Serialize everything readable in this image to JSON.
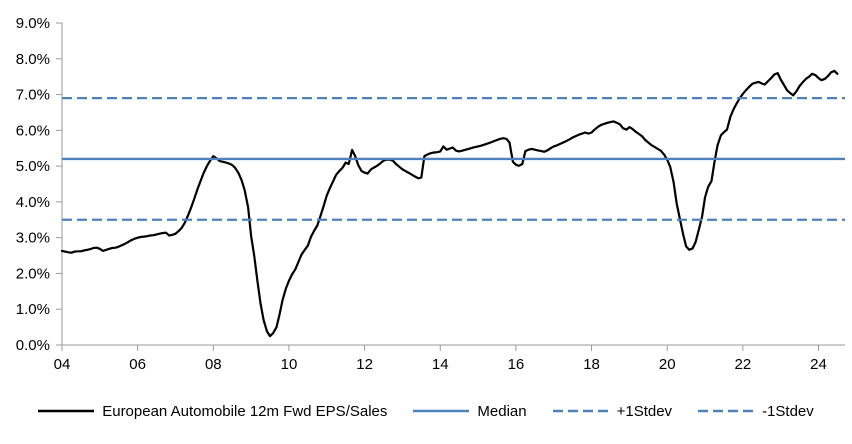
{
  "chart_data": {
    "type": "line",
    "title": "",
    "xlabel": "",
    "ylabel": "",
    "grid": false,
    "legend_position": "bottom",
    "axis_color": "#9a9a9a",
    "x_axis": {
      "range": [
        2004,
        2024.7
      ],
      "tick_values": [
        2004,
        2006,
        2008,
        2010,
        2012,
        2014,
        2016,
        2018,
        2020,
        2022,
        2024
      ],
      "tick_labels": [
        "04",
        "06",
        "08",
        "10",
        "12",
        "14",
        "16",
        "18",
        "20",
        "22",
        "24"
      ]
    },
    "y_axis": {
      "range": [
        0,
        9
      ],
      "tick_values": [
        0,
        1,
        2,
        3,
        4,
        5,
        6,
        7,
        8,
        9
      ],
      "tick_labels": [
        "0.0%",
        "1.0%",
        "2.0%",
        "3.0%",
        "4.0%",
        "5.0%",
        "6.0%",
        "7.0%",
        "8.0%",
        "9.0%"
      ]
    },
    "series": [
      {
        "name": "European Automobile 12m Fwd EPS/Sales",
        "color": "#000000",
        "style": "solid",
        "points": [
          [
            2004.0,
            2.63
          ],
          [
            2004.08,
            2.61
          ],
          [
            2004.17,
            2.59
          ],
          [
            2004.25,
            2.58
          ],
          [
            2004.33,
            2.61
          ],
          [
            2004.42,
            2.62
          ],
          [
            2004.5,
            2.62
          ],
          [
            2004.58,
            2.64
          ],
          [
            2004.67,
            2.66
          ],
          [
            2004.75,
            2.68
          ],
          [
            2004.83,
            2.71
          ],
          [
            2004.92,
            2.72
          ],
          [
            2005.0,
            2.69
          ],
          [
            2005.08,
            2.63
          ],
          [
            2005.17,
            2.66
          ],
          [
            2005.25,
            2.69
          ],
          [
            2005.33,
            2.71
          ],
          [
            2005.42,
            2.72
          ],
          [
            2005.5,
            2.75
          ],
          [
            2005.58,
            2.79
          ],
          [
            2005.67,
            2.83
          ],
          [
            2005.75,
            2.88
          ],
          [
            2005.83,
            2.93
          ],
          [
            2005.92,
            2.97
          ],
          [
            2006.0,
            3.0
          ],
          [
            2006.08,
            3.02
          ],
          [
            2006.17,
            3.03
          ],
          [
            2006.25,
            3.04
          ],
          [
            2006.33,
            3.06
          ],
          [
            2006.42,
            3.07
          ],
          [
            2006.5,
            3.09
          ],
          [
            2006.58,
            3.11
          ],
          [
            2006.67,
            3.13
          ],
          [
            2006.75,
            3.14
          ],
          [
            2006.83,
            3.06
          ],
          [
            2006.92,
            3.08
          ],
          [
            2007.0,
            3.11
          ],
          [
            2007.08,
            3.18
          ],
          [
            2007.17,
            3.28
          ],
          [
            2007.25,
            3.42
          ],
          [
            2007.33,
            3.62
          ],
          [
            2007.42,
            3.86
          ],
          [
            2007.5,
            4.1
          ],
          [
            2007.58,
            4.35
          ],
          [
            2007.67,
            4.6
          ],
          [
            2007.75,
            4.82
          ],
          [
            2007.83,
            5.0
          ],
          [
            2007.92,
            5.16
          ],
          [
            2008.0,
            5.28
          ],
          [
            2008.08,
            5.22
          ],
          [
            2008.17,
            5.14
          ],
          [
            2008.25,
            5.12
          ],
          [
            2008.33,
            5.1
          ],
          [
            2008.42,
            5.07
          ],
          [
            2008.5,
            5.03
          ],
          [
            2008.58,
            4.95
          ],
          [
            2008.67,
            4.8
          ],
          [
            2008.75,
            4.6
          ],
          [
            2008.83,
            4.32
          ],
          [
            2008.92,
            3.85
          ],
          [
            2009.0,
            3.05
          ],
          [
            2009.08,
            2.5
          ],
          [
            2009.17,
            1.75
          ],
          [
            2009.25,
            1.15
          ],
          [
            2009.33,
            0.7
          ],
          [
            2009.42,
            0.38
          ],
          [
            2009.5,
            0.25
          ],
          [
            2009.58,
            0.33
          ],
          [
            2009.67,
            0.5
          ],
          [
            2009.75,
            0.85
          ],
          [
            2009.83,
            1.25
          ],
          [
            2009.92,
            1.58
          ],
          [
            2010.0,
            1.8
          ],
          [
            2010.08,
            1.97
          ],
          [
            2010.17,
            2.12
          ],
          [
            2010.25,
            2.32
          ],
          [
            2010.33,
            2.52
          ],
          [
            2010.42,
            2.66
          ],
          [
            2010.5,
            2.78
          ],
          [
            2010.58,
            3.02
          ],
          [
            2010.67,
            3.2
          ],
          [
            2010.75,
            3.34
          ],
          [
            2010.83,
            3.6
          ],
          [
            2010.92,
            3.9
          ],
          [
            2011.0,
            4.18
          ],
          [
            2011.08,
            4.38
          ],
          [
            2011.17,
            4.58
          ],
          [
            2011.25,
            4.76
          ],
          [
            2011.33,
            4.86
          ],
          [
            2011.42,
            4.96
          ],
          [
            2011.5,
            5.1
          ],
          [
            2011.58,
            5.06
          ],
          [
            2011.67,
            5.45
          ],
          [
            2011.75,
            5.28
          ],
          [
            2011.83,
            5.03
          ],
          [
            2011.92,
            4.86
          ],
          [
            2012.0,
            4.82
          ],
          [
            2012.08,
            4.79
          ],
          [
            2012.17,
            4.91
          ],
          [
            2012.25,
            4.96
          ],
          [
            2012.33,
            5.01
          ],
          [
            2012.42,
            5.08
          ],
          [
            2012.5,
            5.15
          ],
          [
            2012.58,
            5.18
          ],
          [
            2012.67,
            5.18
          ],
          [
            2012.75,
            5.15
          ],
          [
            2012.83,
            5.06
          ],
          [
            2012.92,
            4.98
          ],
          [
            2013.0,
            4.91
          ],
          [
            2013.08,
            4.86
          ],
          [
            2013.17,
            4.81
          ],
          [
            2013.25,
            4.76
          ],
          [
            2013.33,
            4.71
          ],
          [
            2013.42,
            4.66
          ],
          [
            2013.5,
            4.68
          ],
          [
            2013.58,
            5.28
          ],
          [
            2013.67,
            5.33
          ],
          [
            2013.75,
            5.36
          ],
          [
            2013.83,
            5.38
          ],
          [
            2013.92,
            5.39
          ],
          [
            2014.0,
            5.41
          ],
          [
            2014.08,
            5.55
          ],
          [
            2014.17,
            5.46
          ],
          [
            2014.25,
            5.49
          ],
          [
            2014.33,
            5.52
          ],
          [
            2014.42,
            5.43
          ],
          [
            2014.5,
            5.41
          ],
          [
            2014.58,
            5.43
          ],
          [
            2014.67,
            5.46
          ],
          [
            2014.75,
            5.48
          ],
          [
            2014.83,
            5.51
          ],
          [
            2014.92,
            5.53
          ],
          [
            2015.0,
            5.55
          ],
          [
            2015.08,
            5.57
          ],
          [
            2015.17,
            5.6
          ],
          [
            2015.25,
            5.63
          ],
          [
            2015.33,
            5.66
          ],
          [
            2015.42,
            5.7
          ],
          [
            2015.5,
            5.73
          ],
          [
            2015.58,
            5.76
          ],
          [
            2015.67,
            5.78
          ],
          [
            2015.75,
            5.76
          ],
          [
            2015.83,
            5.66
          ],
          [
            2015.92,
            5.12
          ],
          [
            2016.0,
            5.04
          ],
          [
            2016.08,
            5.01
          ],
          [
            2016.17,
            5.06
          ],
          [
            2016.25,
            5.42
          ],
          [
            2016.33,
            5.46
          ],
          [
            2016.42,
            5.48
          ],
          [
            2016.5,
            5.46
          ],
          [
            2016.58,
            5.44
          ],
          [
            2016.67,
            5.42
          ],
          [
            2016.75,
            5.4
          ],
          [
            2016.83,
            5.44
          ],
          [
            2016.92,
            5.5
          ],
          [
            2017.0,
            5.55
          ],
          [
            2017.08,
            5.58
          ],
          [
            2017.17,
            5.62
          ],
          [
            2017.25,
            5.66
          ],
          [
            2017.33,
            5.7
          ],
          [
            2017.42,
            5.75
          ],
          [
            2017.5,
            5.8
          ],
          [
            2017.58,
            5.84
          ],
          [
            2017.67,
            5.88
          ],
          [
            2017.75,
            5.91
          ],
          [
            2017.83,
            5.94
          ],
          [
            2017.92,
            5.91
          ],
          [
            2018.0,
            5.94
          ],
          [
            2018.08,
            6.02
          ],
          [
            2018.17,
            6.1
          ],
          [
            2018.25,
            6.15
          ],
          [
            2018.33,
            6.18
          ],
          [
            2018.42,
            6.21
          ],
          [
            2018.5,
            6.23
          ],
          [
            2018.58,
            6.25
          ],
          [
            2018.67,
            6.21
          ],
          [
            2018.75,
            6.17
          ],
          [
            2018.83,
            6.06
          ],
          [
            2018.92,
            6.02
          ],
          [
            2019.0,
            6.09
          ],
          [
            2019.08,
            6.04
          ],
          [
            2019.17,
            5.96
          ],
          [
            2019.25,
            5.9
          ],
          [
            2019.33,
            5.84
          ],
          [
            2019.42,
            5.73
          ],
          [
            2019.5,
            5.66
          ],
          [
            2019.58,
            5.59
          ],
          [
            2019.67,
            5.53
          ],
          [
            2019.75,
            5.48
          ],
          [
            2019.83,
            5.43
          ],
          [
            2019.92,
            5.32
          ],
          [
            2020.0,
            5.18
          ],
          [
            2020.08,
            4.98
          ],
          [
            2020.17,
            4.55
          ],
          [
            2020.25,
            3.95
          ],
          [
            2020.33,
            3.55
          ],
          [
            2020.42,
            3.1
          ],
          [
            2020.5,
            2.76
          ],
          [
            2020.58,
            2.66
          ],
          [
            2020.67,
            2.7
          ],
          [
            2020.75,
            2.88
          ],
          [
            2020.83,
            3.2
          ],
          [
            2020.92,
            3.58
          ],
          [
            2021.0,
            4.12
          ],
          [
            2021.08,
            4.42
          ],
          [
            2021.17,
            4.58
          ],
          [
            2021.25,
            5.12
          ],
          [
            2021.33,
            5.58
          ],
          [
            2021.42,
            5.86
          ],
          [
            2021.5,
            5.95
          ],
          [
            2021.58,
            6.02
          ],
          [
            2021.67,
            6.38
          ],
          [
            2021.75,
            6.58
          ],
          [
            2021.83,
            6.74
          ],
          [
            2021.92,
            6.9
          ],
          [
            2022.0,
            7.02
          ],
          [
            2022.08,
            7.12
          ],
          [
            2022.17,
            7.22
          ],
          [
            2022.25,
            7.3
          ],
          [
            2022.33,
            7.33
          ],
          [
            2022.42,
            7.35
          ],
          [
            2022.5,
            7.31
          ],
          [
            2022.58,
            7.28
          ],
          [
            2022.67,
            7.38
          ],
          [
            2022.75,
            7.46
          ],
          [
            2022.83,
            7.56
          ],
          [
            2022.92,
            7.6
          ],
          [
            2023.0,
            7.42
          ],
          [
            2023.08,
            7.28
          ],
          [
            2023.17,
            7.12
          ],
          [
            2023.25,
            7.04
          ],
          [
            2023.33,
            6.98
          ],
          [
            2023.42,
            7.1
          ],
          [
            2023.5,
            7.24
          ],
          [
            2023.58,
            7.34
          ],
          [
            2023.67,
            7.44
          ],
          [
            2023.75,
            7.5
          ],
          [
            2023.83,
            7.58
          ],
          [
            2023.92,
            7.54
          ],
          [
            2024.0,
            7.46
          ],
          [
            2024.08,
            7.4
          ],
          [
            2024.17,
            7.44
          ],
          [
            2024.25,
            7.52
          ],
          [
            2024.33,
            7.62
          ],
          [
            2024.42,
            7.66
          ],
          [
            2024.5,
            7.58
          ]
        ]
      },
      {
        "name": "Median",
        "color": "#4F81BD",
        "style": "solid",
        "value": 5.2
      },
      {
        "name": "+1Stdev",
        "color": "#4F81BD",
        "style": "dashed",
        "value": 6.9
      },
      {
        "name": "-1Stdev",
        "color": "#4F81BD",
        "style": "dashed",
        "value": 3.5
      }
    ]
  }
}
